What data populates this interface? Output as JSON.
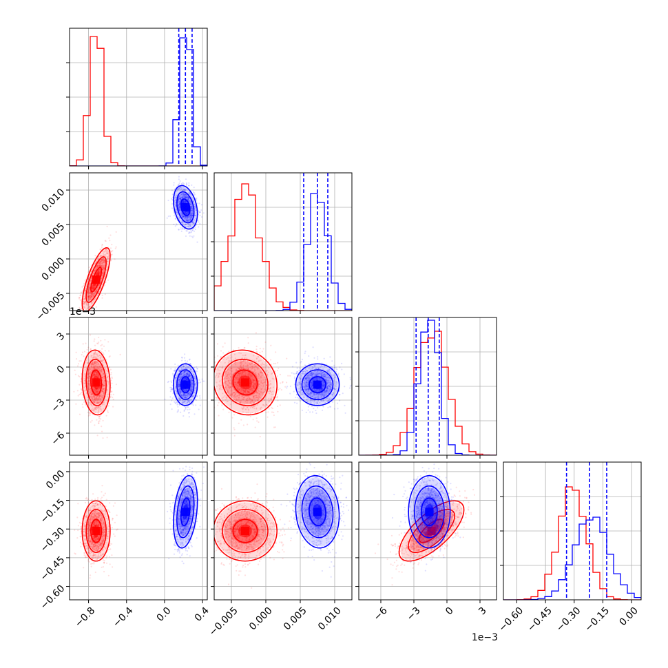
{
  "colors": {
    "series_a": "#ff0000",
    "series_b": "#0000ff",
    "grid": "#b0b0b0"
  },
  "chart_data": {
    "type": "corner",
    "params": [
      {
        "id": "p0",
        "range": [
          -1.0,
          0.45
        ],
        "ticks": [
          -0.8,
          -0.4,
          0.0,
          0.4
        ],
        "tick_labels": [
          "−0.8",
          "−0.4",
          "0.0",
          "0.4"
        ],
        "offset_label": ""
      },
      {
        "id": "p1",
        "range": [
          -0.0075,
          0.0125
        ],
        "ticks": [
          -0.005,
          0.0,
          0.005,
          0.01
        ],
        "tick_labels": [
          "−0.005",
          "0.000",
          "0.005",
          "0.010"
        ],
        "offset_label": ""
      },
      {
        "id": "p2",
        "range": [
          -8.0,
          4.5
        ],
        "ticks": [
          -6,
          -3,
          0,
          3
        ],
        "tick_labels": [
          "−6",
          "−3",
          "0",
          "3"
        ],
        "offset_label": "1e−3"
      },
      {
        "id": "p3",
        "range": [
          -0.67,
          0.05
        ],
        "ticks": [
          -0.6,
          -0.45,
          -0.3,
          -0.15,
          0.0
        ],
        "tick_labels": [
          "−0.60",
          "−0.45",
          "−0.30",
          "−0.15",
          "0.00"
        ],
        "offset_label": ""
      }
    ],
    "series": [
      {
        "color": "#ff0000",
        "means": [
          -0.72,
          -0.003,
          -1.4,
          -0.31
        ],
        "sds": [
          0.07,
          0.0022,
          1.4,
          0.075
        ],
        "corr": [
          [
            1,
            0.75,
            -0.1,
            0.0
          ],
          [
            0.75,
            1,
            -0.1,
            0.0
          ],
          [
            -0.1,
            -0.1,
            1,
            0.7
          ],
          [
            0.0,
            0.0,
            0.7,
            1
          ]
        ],
        "hist_peaks": [
          0.94,
          0.92,
          0.9,
          0.82
        ]
      },
      {
        "color": "#0000ff",
        "means": [
          0.22,
          0.0075,
          -1.6,
          -0.21
        ],
        "sds": [
          0.06,
          0.0015,
          0.9,
          0.09
        ],
        "corr": [
          [
            1,
            -0.3,
            0.0,
            0.3
          ],
          [
            -0.3,
            1,
            0.0,
            -0.1
          ],
          [
            0.0,
            0.0,
            1,
            0.0
          ],
          [
            0.3,
            -0.1,
            0.0,
            1
          ]
        ],
        "hist_peaks": [
          0.93,
          0.85,
          0.98,
          0.6
        ],
        "quantiles": [
          [
            0.15,
            0.22,
            0.29
          ],
          [
            0.0055,
            0.0075,
            0.009
          ],
          [
            -2.8,
            -1.7,
            -0.7
          ],
          [
            -0.34,
            -0.22,
            -0.13
          ]
        ]
      }
    ],
    "grid": true
  }
}
